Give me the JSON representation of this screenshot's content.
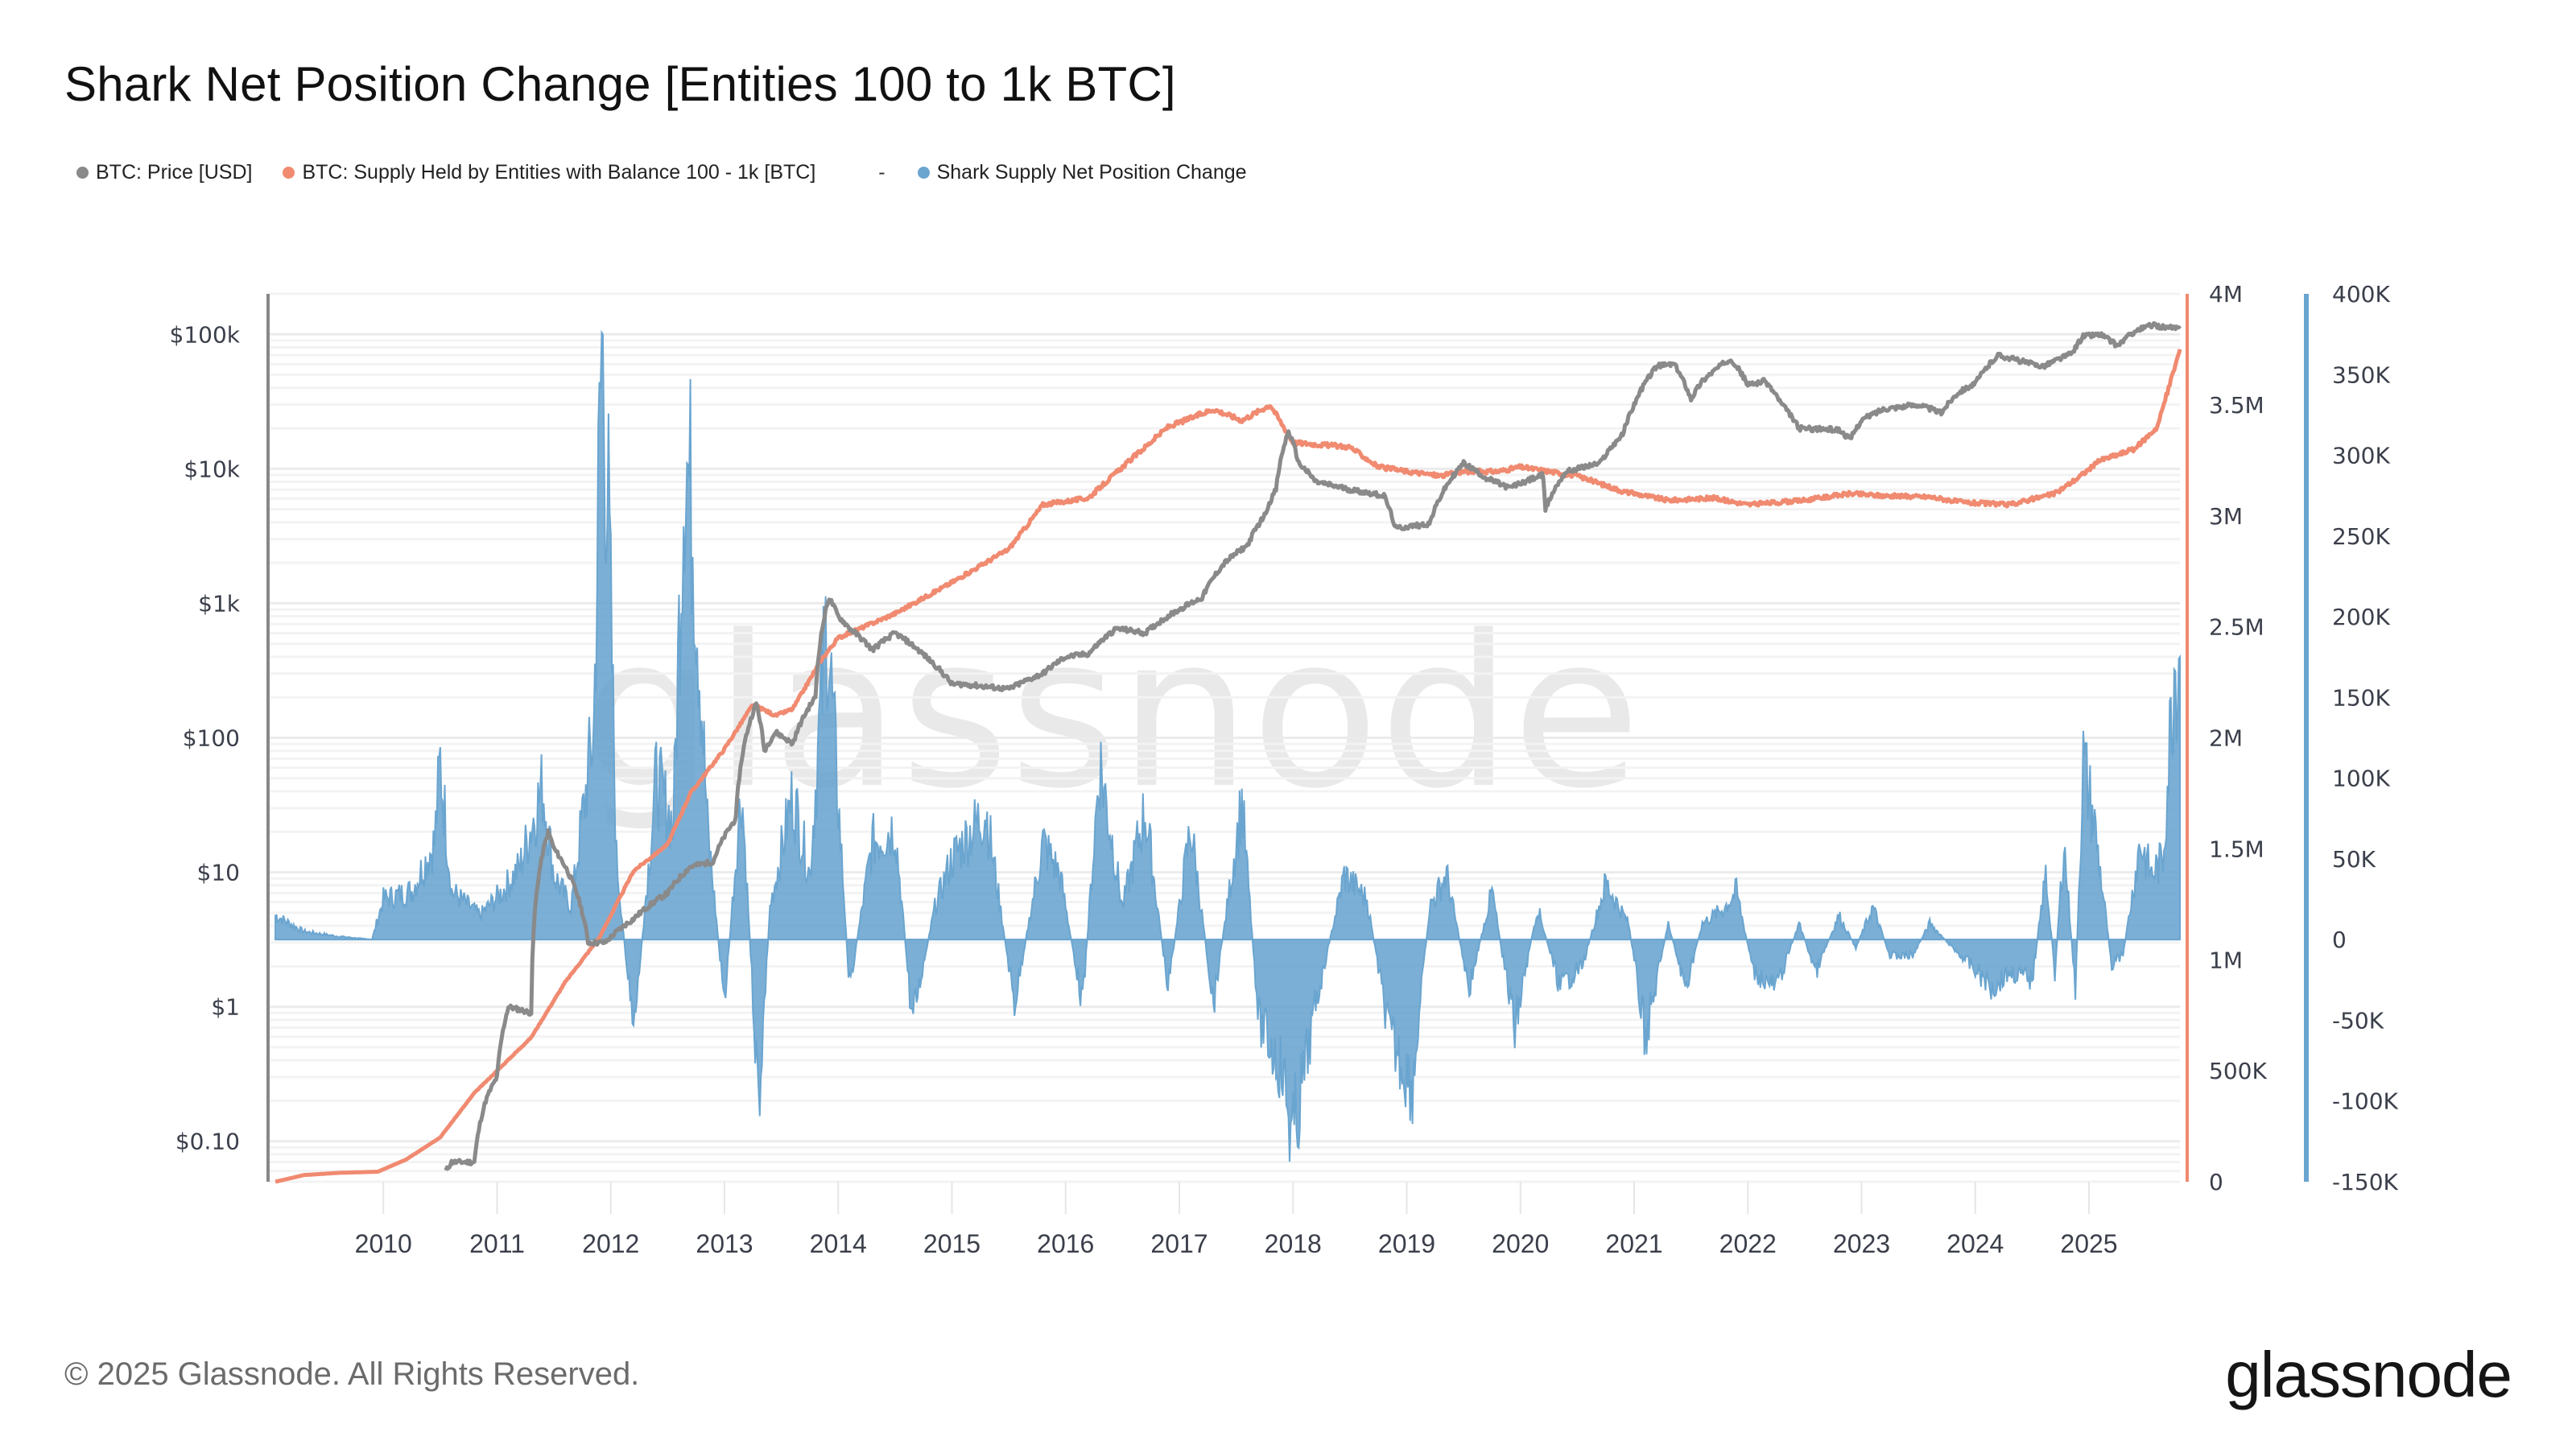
{
  "title": "Shark Net Position Change [Entities 100 to 1k BTC]",
  "legend": [
    {
      "label": "BTC: Price [USD]",
      "color": "#8a8a8a"
    },
    {
      "label": "BTC: Supply Held by Entities with Balance 100 - 1k [BTC]",
      "color": "#f08a70"
    },
    {
      "label": "-",
      "color": ""
    },
    {
      "label": "Shark Supply Net Position Change",
      "color": "#6aa5d0"
    }
  ],
  "watermark": "glassnode",
  "footer": "© 2025 Glassnode. All Rights Reserved.",
  "logo": "glassnode",
  "chart_data": {
    "type": "line",
    "title": "Shark Net Position Change [Entities 100 to 1k BTC]",
    "x_ticks": [
      "2010",
      "2011",
      "2012",
      "2013",
      "2014",
      "2015",
      "2016",
      "2017",
      "2018",
      "2019",
      "2020",
      "2021",
      "2022",
      "2023",
      "2024",
      "2025"
    ],
    "x_range": [
      2009.0,
      2025.8
    ],
    "axes": {
      "price": {
        "scale": "log",
        "range": [
          0.05,
          200000
        ],
        "tick_labels": [
          "$0.10",
          "$1",
          "$10",
          "$100",
          "$1k",
          "$10k",
          "$100k"
        ],
        "tick_values": [
          0.1,
          1,
          10,
          100,
          1000,
          10000,
          100000
        ],
        "side": "left"
      },
      "supply": {
        "scale": "linear",
        "range": [
          0,
          4000000
        ],
        "tick_labels": [
          "0",
          "500K",
          "1M",
          "1.5M",
          "2M",
          "2.5M",
          "3M",
          "3.5M",
          "4M"
        ],
        "tick_values": [
          0,
          500000,
          1000000,
          1500000,
          2000000,
          2500000,
          3000000,
          3500000,
          4000000
        ],
        "side": "right",
        "color": "#f08a70"
      },
      "net_change": {
        "scale": "linear",
        "range": [
          -150000,
          400000
        ],
        "tick_labels": [
          "-150K",
          "-100K",
          "-50K",
          "0",
          "50K",
          "100K",
          "150K",
          "200K",
          "250K",
          "300K",
          "350K",
          "400K"
        ],
        "tick_values": [
          -150000,
          -100000,
          -50000,
          0,
          50000,
          100000,
          150000,
          200000,
          250000,
          300000,
          350000,
          400000
        ],
        "side": "far-right",
        "color": "#6aa5d0"
      }
    },
    "series": [
      {
        "name": "BTC: Price [USD]",
        "axis": "price",
        "color": "#8a8a8a",
        "kind": "line",
        "points": [
          [
            2010.55,
            0.06
          ],
          [
            2010.6,
            0.07
          ],
          [
            2010.8,
            0.07
          ],
          [
            2010.9,
            0.2
          ],
          [
            2011.0,
            0.3
          ],
          [
            2011.1,
            1.0
          ],
          [
            2011.3,
            0.9
          ],
          [
            2011.45,
            20
          ],
          [
            2011.5,
            15
          ],
          [
            2011.8,
            3
          ],
          [
            2011.95,
            3
          ],
          [
            2012.2,
            4.5
          ],
          [
            2012.5,
            7
          ],
          [
            2012.7,
            11
          ],
          [
            2012.9,
            12
          ],
          [
            2013.1,
            25
          ],
          [
            2013.28,
            180
          ],
          [
            2013.35,
            80
          ],
          [
            2013.45,
            110
          ],
          [
            2013.6,
            90
          ],
          [
            2013.8,
            200
          ],
          [
            2013.92,
            1100
          ],
          [
            2014.0,
            800
          ],
          [
            2014.1,
            650
          ],
          [
            2014.3,
            450
          ],
          [
            2014.5,
            600
          ],
          [
            2014.8,
            380
          ],
          [
            2015.0,
            250
          ],
          [
            2015.1,
            250
          ],
          [
            2015.5,
            230
          ],
          [
            2015.8,
            300
          ],
          [
            2016.0,
            400
          ],
          [
            2016.2,
            420
          ],
          [
            2016.45,
            650
          ],
          [
            2016.7,
            600
          ],
          [
            2017.0,
            900
          ],
          [
            2017.2,
            1100
          ],
          [
            2017.4,
            2000
          ],
          [
            2017.6,
            2700
          ],
          [
            2017.75,
            4500
          ],
          [
            2017.85,
            7000
          ],
          [
            2017.96,
            19000
          ],
          [
            2018.05,
            11000
          ],
          [
            2018.2,
            8000
          ],
          [
            2018.5,
            7000
          ],
          [
            2018.8,
            6300
          ],
          [
            2018.9,
            3600
          ],
          [
            2019.2,
            3900
          ],
          [
            2019.5,
            11000
          ],
          [
            2019.7,
            8500
          ],
          [
            2019.9,
            7200
          ],
          [
            2020.2,
            9000
          ],
          [
            2020.22,
            5000
          ],
          [
            2020.4,
            9500
          ],
          [
            2020.7,
            11000
          ],
          [
            2020.9,
            18000
          ],
          [
            2021.0,
            30000
          ],
          [
            2021.2,
            58000
          ],
          [
            2021.35,
            60000
          ],
          [
            2021.5,
            33000
          ],
          [
            2021.6,
            45000
          ],
          [
            2021.85,
            66000
          ],
          [
            2022.0,
            42000
          ],
          [
            2022.15,
            45000
          ],
          [
            2022.3,
            30000
          ],
          [
            2022.45,
            20000
          ],
          [
            2022.8,
            19500
          ],
          [
            2022.9,
            16500
          ],
          [
            2023.0,
            23000
          ],
          [
            2023.2,
            28000
          ],
          [
            2023.5,
            30000
          ],
          [
            2023.7,
            26000
          ],
          [
            2023.85,
            37000
          ],
          [
            2024.0,
            43000
          ],
          [
            2024.2,
            70000
          ],
          [
            2024.5,
            60000
          ],
          [
            2024.6,
            58000
          ],
          [
            2024.85,
            72000
          ],
          [
            2024.95,
            97000
          ],
          [
            2025.1,
            100000
          ],
          [
            2025.25,
            82000
          ],
          [
            2025.4,
            105000
          ],
          [
            2025.55,
            117000
          ],
          [
            2025.7,
            112000
          ],
          [
            2025.8,
            110000
          ]
        ]
      },
      {
        "name": "BTC: Supply Held by Entities with Balance 100 - 1k [BTC]",
        "axis": "supply",
        "color": "#f08a70",
        "kind": "line",
        "points": [
          [
            2009.05,
            0
          ],
          [
            2009.3,
            30000
          ],
          [
            2009.6,
            40000
          ],
          [
            2009.95,
            45000
          ],
          [
            2010.2,
            100000
          ],
          [
            2010.5,
            200000
          ],
          [
            2010.8,
            400000
          ],
          [
            2011.0,
            500000
          ],
          [
            2011.3,
            650000
          ],
          [
            2011.6,
            900000
          ],
          [
            2011.9,
            1100000
          ],
          [
            2012.2,
            1400000
          ],
          [
            2012.5,
            1520000
          ],
          [
            2012.7,
            1750000
          ],
          [
            2013.0,
            1950000
          ],
          [
            2013.25,
            2150000
          ],
          [
            2013.45,
            2100000
          ],
          [
            2013.6,
            2130000
          ],
          [
            2013.85,
            2350000
          ],
          [
            2014.0,
            2450000
          ],
          [
            2014.5,
            2560000
          ],
          [
            2015.0,
            2700000
          ],
          [
            2015.5,
            2850000
          ],
          [
            2015.8,
            3050000
          ],
          [
            2016.2,
            3080000
          ],
          [
            2016.5,
            3220000
          ],
          [
            2016.9,
            3400000
          ],
          [
            2017.3,
            3480000
          ],
          [
            2017.55,
            3430000
          ],
          [
            2017.8,
            3500000
          ],
          [
            2018.0,
            3330000
          ],
          [
            2018.5,
            3310000
          ],
          [
            2018.75,
            3220000
          ],
          [
            2019.0,
            3200000
          ],
          [
            2019.3,
            3180000
          ],
          [
            2019.5,
            3200000
          ],
          [
            2019.8,
            3200000
          ],
          [
            2020.0,
            3220000
          ],
          [
            2020.5,
            3180000
          ],
          [
            2020.9,
            3110000
          ],
          [
            2021.3,
            3070000
          ],
          [
            2021.7,
            3080000
          ],
          [
            2022.0,
            3050000
          ],
          [
            2022.5,
            3070000
          ],
          [
            2022.9,
            3100000
          ],
          [
            2023.2,
            3090000
          ],
          [
            2023.6,
            3085000
          ],
          [
            2023.9,
            3060000
          ],
          [
            2024.3,
            3050000
          ],
          [
            2024.7,
            3100000
          ],
          [
            2024.9,
            3170000
          ],
          [
            2025.1,
            3250000
          ],
          [
            2025.4,
            3300000
          ],
          [
            2025.6,
            3400000
          ],
          [
            2025.8,
            3750000
          ]
        ]
      },
      {
        "name": "Shark Supply Net Position Change",
        "axis": "net_change",
        "color": "#6aa5d0",
        "kind": "area",
        "points": [
          [
            2009.05,
            15000
          ],
          [
            2009.3,
            5000
          ],
          [
            2009.6,
            2000
          ],
          [
            2009.9,
            0
          ],
          [
            2010.0,
            25000
          ],
          [
            2010.25,
            30000
          ],
          [
            2010.45,
            60000
          ],
          [
            2010.5,
            110000
          ],
          [
            2010.6,
            30000
          ],
          [
            2010.85,
            15000
          ],
          [
            2011.05,
            30000
          ],
          [
            2011.2,
            45000
          ],
          [
            2011.4,
            95000
          ],
          [
            2011.5,
            40000
          ],
          [
            2011.65,
            20000
          ],
          [
            2011.85,
            130000
          ],
          [
            2011.92,
            370000
          ],
          [
            2011.98,
            260000
          ],
          [
            2012.05,
            50000
          ],
          [
            2012.2,
            -60000
          ],
          [
            2012.4,
            100000
          ],
          [
            2012.55,
            70000
          ],
          [
            2012.65,
            310000
          ],
          [
            2012.72,
            260000
          ],
          [
            2012.85,
            70000
          ],
          [
            2013.0,
            -40000
          ],
          [
            2013.15,
            95000
          ],
          [
            2013.3,
            -100000
          ],
          [
            2013.4,
            20000
          ],
          [
            2013.6,
            90000
          ],
          [
            2013.75,
            40000
          ],
          [
            2013.9,
            200000
          ],
          [
            2014.1,
            -30000
          ],
          [
            2014.3,
            60000
          ],
          [
            2014.5,
            70000
          ],
          [
            2014.65,
            -50000
          ],
          [
            2014.85,
            20000
          ],
          [
            2015.0,
            50000
          ],
          [
            2015.3,
            80000
          ],
          [
            2015.55,
            -40000
          ],
          [
            2015.8,
            60000
          ],
          [
            2015.95,
            40000
          ],
          [
            2016.15,
            -40000
          ],
          [
            2016.3,
            110000
          ],
          [
            2016.5,
            20000
          ],
          [
            2016.7,
            80000
          ],
          [
            2016.9,
            -30000
          ],
          [
            2017.1,
            70000
          ],
          [
            2017.3,
            -40000
          ],
          [
            2017.55,
            85000
          ],
          [
            2017.7,
            -50000
          ],
          [
            2017.9,
            -80000
          ],
          [
            2018.0,
            -125000
          ],
          [
            2018.2,
            -40000
          ],
          [
            2018.45,
            40000
          ],
          [
            2018.65,
            25000
          ],
          [
            2018.85,
            -60000
          ],
          [
            2019.05,
            -90000
          ],
          [
            2019.2,
            20000
          ],
          [
            2019.35,
            40000
          ],
          [
            2019.55,
            -30000
          ],
          [
            2019.75,
            30000
          ],
          [
            2019.95,
            -55000
          ],
          [
            2020.15,
            20000
          ],
          [
            2020.35,
            -30000
          ],
          [
            2020.55,
            -15000
          ],
          [
            2020.75,
            35000
          ],
          [
            2020.95,
            10000
          ],
          [
            2021.1,
            -60000
          ],
          [
            2021.3,
            10000
          ],
          [
            2021.45,
            -30000
          ],
          [
            2021.6,
            10000
          ],
          [
            2021.8,
            20000
          ],
          [
            2021.9,
            30000
          ],
          [
            2022.05,
            -20000
          ],
          [
            2022.25,
            -30000
          ],
          [
            2022.45,
            10000
          ],
          [
            2022.6,
            -20000
          ],
          [
            2022.8,
            15000
          ],
          [
            2022.95,
            -5000
          ],
          [
            2023.1,
            20000
          ],
          [
            2023.25,
            -10000
          ],
          [
            2023.45,
            -10000
          ],
          [
            2023.6,
            10000
          ],
          [
            2023.8,
            -5000
          ],
          [
            2023.95,
            -15000
          ],
          [
            2024.15,
            -30000
          ],
          [
            2024.3,
            -20000
          ],
          [
            2024.5,
            -25000
          ],
          [
            2024.62,
            40000
          ],
          [
            2024.7,
            -20000
          ],
          [
            2024.78,
            60000
          ],
          [
            2024.88,
            -30000
          ],
          [
            2024.95,
            110000
          ],
          [
            2025.05,
            70000
          ],
          [
            2025.2,
            -15000
          ],
          [
            2025.3,
            -10000
          ],
          [
            2025.45,
            60000
          ],
          [
            2025.55,
            40000
          ],
          [
            2025.65,
            50000
          ],
          [
            2025.75,
            170000
          ],
          [
            2025.8,
            175000
          ]
        ]
      }
    ]
  }
}
